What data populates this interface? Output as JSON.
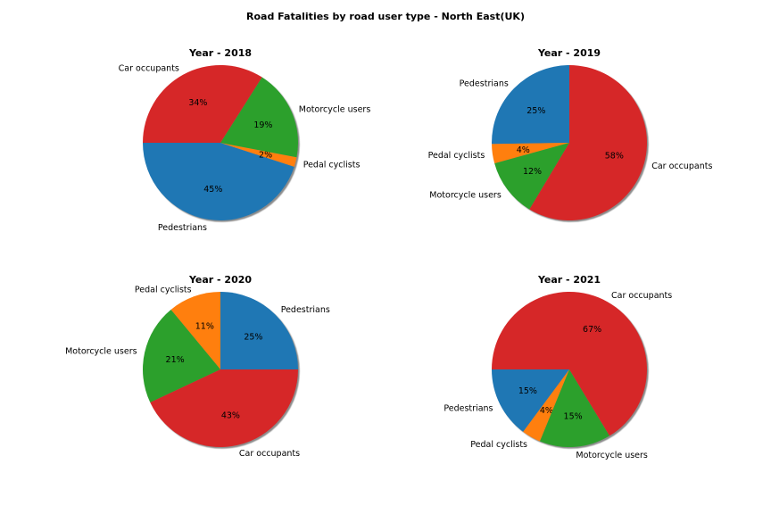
{
  "figure": {
    "title": "Road Fatalities by road user type - North East(UK)"
  },
  "colors": {
    "Pedestrians": "#1f77b4",
    "Pedal cyclists": "#ff7f0e",
    "Motorcycle users": "#2ca02c",
    "Car occupants": "#d62728"
  },
  "chart_data": [
    {
      "type": "pie",
      "title": "Year - 2018",
      "start_angle_deg": 180,
      "slices": [
        {
          "label": "Pedestrians",
          "value": 45,
          "display": "45%"
        },
        {
          "label": "Pedal cyclists",
          "value": 2,
          "display": "2%"
        },
        {
          "label": "Motorcycle users",
          "value": 19,
          "display": "19%"
        },
        {
          "label": "Car occupants",
          "value": 34,
          "display": "34%"
        }
      ]
    },
    {
      "type": "pie",
      "title": "Year - 2019",
      "start_angle_deg": 90,
      "slices": [
        {
          "label": "Pedestrians",
          "value": 25,
          "display": "25%"
        },
        {
          "label": "Pedal cyclists",
          "value": 4,
          "display": "4%"
        },
        {
          "label": "Motorcycle users",
          "value": 12,
          "display": "12%"
        },
        {
          "label": "Car occupants",
          "value": 58,
          "display": "58%"
        }
      ]
    },
    {
      "type": "pie",
      "title": "Year - 2020",
      "start_angle_deg": 0,
      "slices": [
        {
          "label": "Pedestrians",
          "value": 25,
          "display": "25%"
        },
        {
          "label": "Pedal cyclists",
          "value": 11,
          "display": "11%"
        },
        {
          "label": "Motorcycle users",
          "value": 21,
          "display": "21%"
        },
        {
          "label": "Car occupants",
          "value": 43,
          "display": "43%"
        }
      ]
    },
    {
      "type": "pie",
      "title": "Year - 2021",
      "start_angle_deg": 180,
      "slices": [
        {
          "label": "Pedestrians",
          "value": 15,
          "display": "15%"
        },
        {
          "label": "Pedal cyclists",
          "value": 4,
          "display": "4%"
        },
        {
          "label": "Motorcycle users",
          "value": 15,
          "display": "15%"
        },
        {
          "label": "Car occupants",
          "value": 67,
          "display": "67%"
        }
      ]
    }
  ]
}
